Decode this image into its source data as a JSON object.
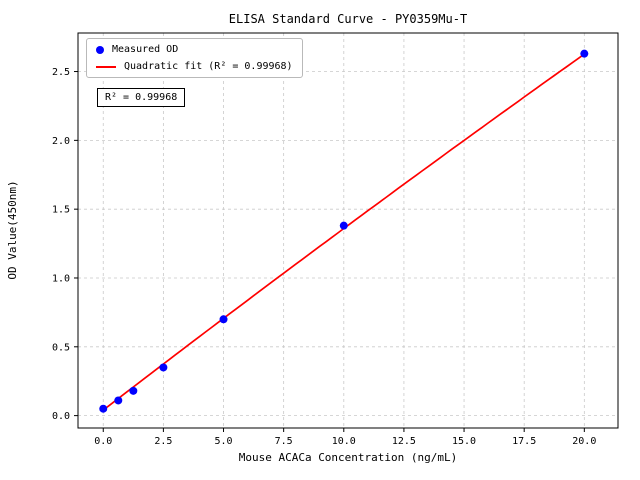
{
  "title": "ELISA Standard Curve - PY0359Mu-T",
  "chart_data": {
    "type": "scatter",
    "title": "ELISA Standard Curve - PY0359Mu-T",
    "xlabel": "Mouse ACACa Concentration (ng/mL)",
    "ylabel": "OD Value(450nm)",
    "xlim": [
      -1.05,
      21.4
    ],
    "ylim": [
      -0.09,
      2.78
    ],
    "xticks": [
      0.0,
      2.5,
      5.0,
      7.5,
      10.0,
      12.5,
      15.0,
      17.5,
      20.0
    ],
    "xtick_labels": [
      "0.0",
      "2.5",
      "5.0",
      "7.5",
      "10.0",
      "12.5",
      "15.0",
      "17.5",
      "20.0"
    ],
    "yticks": [
      0.0,
      0.5,
      1.0,
      1.5,
      2.0,
      2.5
    ],
    "ytick_labels": [
      "0.0",
      "0.5",
      "1.0",
      "1.5",
      "2.0",
      "2.5"
    ],
    "grid": true,
    "legend_position": "upper left",
    "series": [
      {
        "name": "Measured OD",
        "type": "scatter",
        "color": "#0000ff",
        "x": [
          0,
          0.625,
          1.25,
          2.5,
          5,
          10,
          20
        ],
        "y": [
          0.05,
          0.11,
          0.18,
          0.35,
          0.7,
          1.38,
          2.63
        ]
      },
      {
        "name": "Quadratic fit (R² = 0.99968)",
        "type": "line",
        "color": "#ff0000",
        "fit_coefficients": {
          "a": 0.0405,
          "b": 0.1345,
          "c": -0.00026
        },
        "x_range": [
          0,
          20
        ]
      }
    ],
    "annotation": "R² = 0.99968",
    "r_squared": 0.99968
  }
}
